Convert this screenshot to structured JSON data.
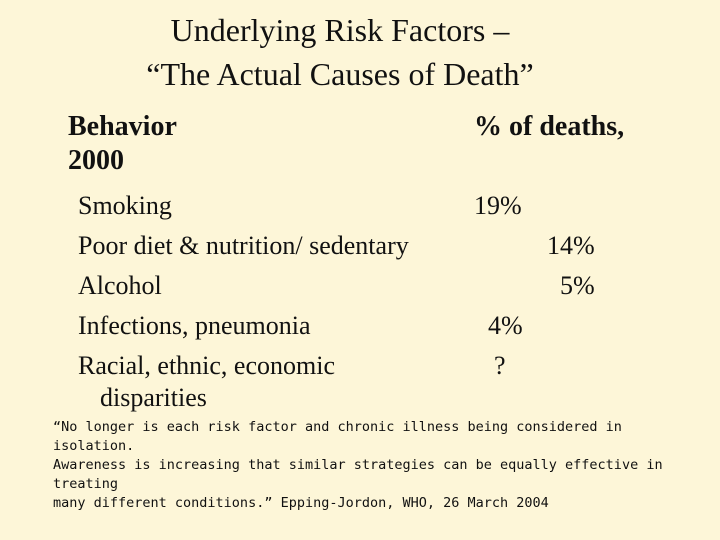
{
  "slide": {
    "title_line1": "Underlying Risk Factors –",
    "title_line2": "“The Actual Causes of Death”",
    "col_behavior_line1": "Behavior",
    "col_behavior_line2": "2000",
    "col_percent": "% of deaths,",
    "rows": [
      {
        "label": "Smoking",
        "value": "19%"
      },
      {
        "label": "Poor diet & nutrition/ sedentary",
        "value": "14%"
      },
      {
        "label": "Alcohol",
        "value": "5%"
      },
      {
        "label": "Infections, pneumonia",
        "value": "4%"
      },
      {
        "label_line1": "Racial, ethnic, economic",
        "label_line2": "disparities",
        "value": "?"
      }
    ],
    "quote": "“No longer is each risk factor and chronic illness being considered in isolation.\nAwareness is increasing that similar strategies can be equally effective in treating\nmany different conditions.”  Epping-Jordon, WHO, 26 March 2004"
  }
}
